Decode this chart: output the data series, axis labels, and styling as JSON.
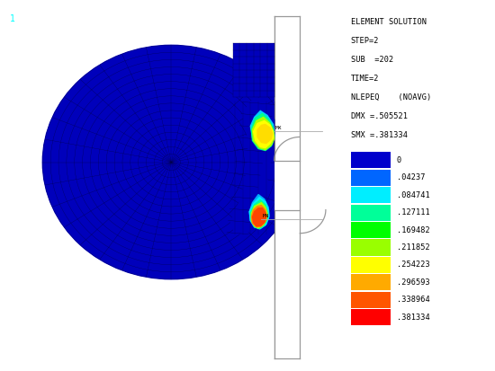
{
  "background_color": "#ffffff",
  "legend_title_lines": [
    "ELEMENT SOLUTION",
    "STEP=2",
    "SUB  =202",
    "TIME=2",
    "NLEPEQ    (NOAVG)",
    "DMX =.505521",
    "SMX =.381334"
  ],
  "legend_values": [
    "0",
    ".04237",
    ".084741",
    ".127111",
    ".169482",
    ".211852",
    ".254223",
    ".296593",
    ".338964",
    ".381334"
  ],
  "legend_colors": [
    "#0000cc",
    "#0066ff",
    "#00eeff",
    "#00ff99",
    "#00ff00",
    "#99ff00",
    "#ffff00",
    "#ffaa00",
    "#ff5500",
    "#ff0000"
  ],
  "fig_width": 5.5,
  "fig_height": 4.13,
  "dpi": 100,
  "text_color": "#000000"
}
